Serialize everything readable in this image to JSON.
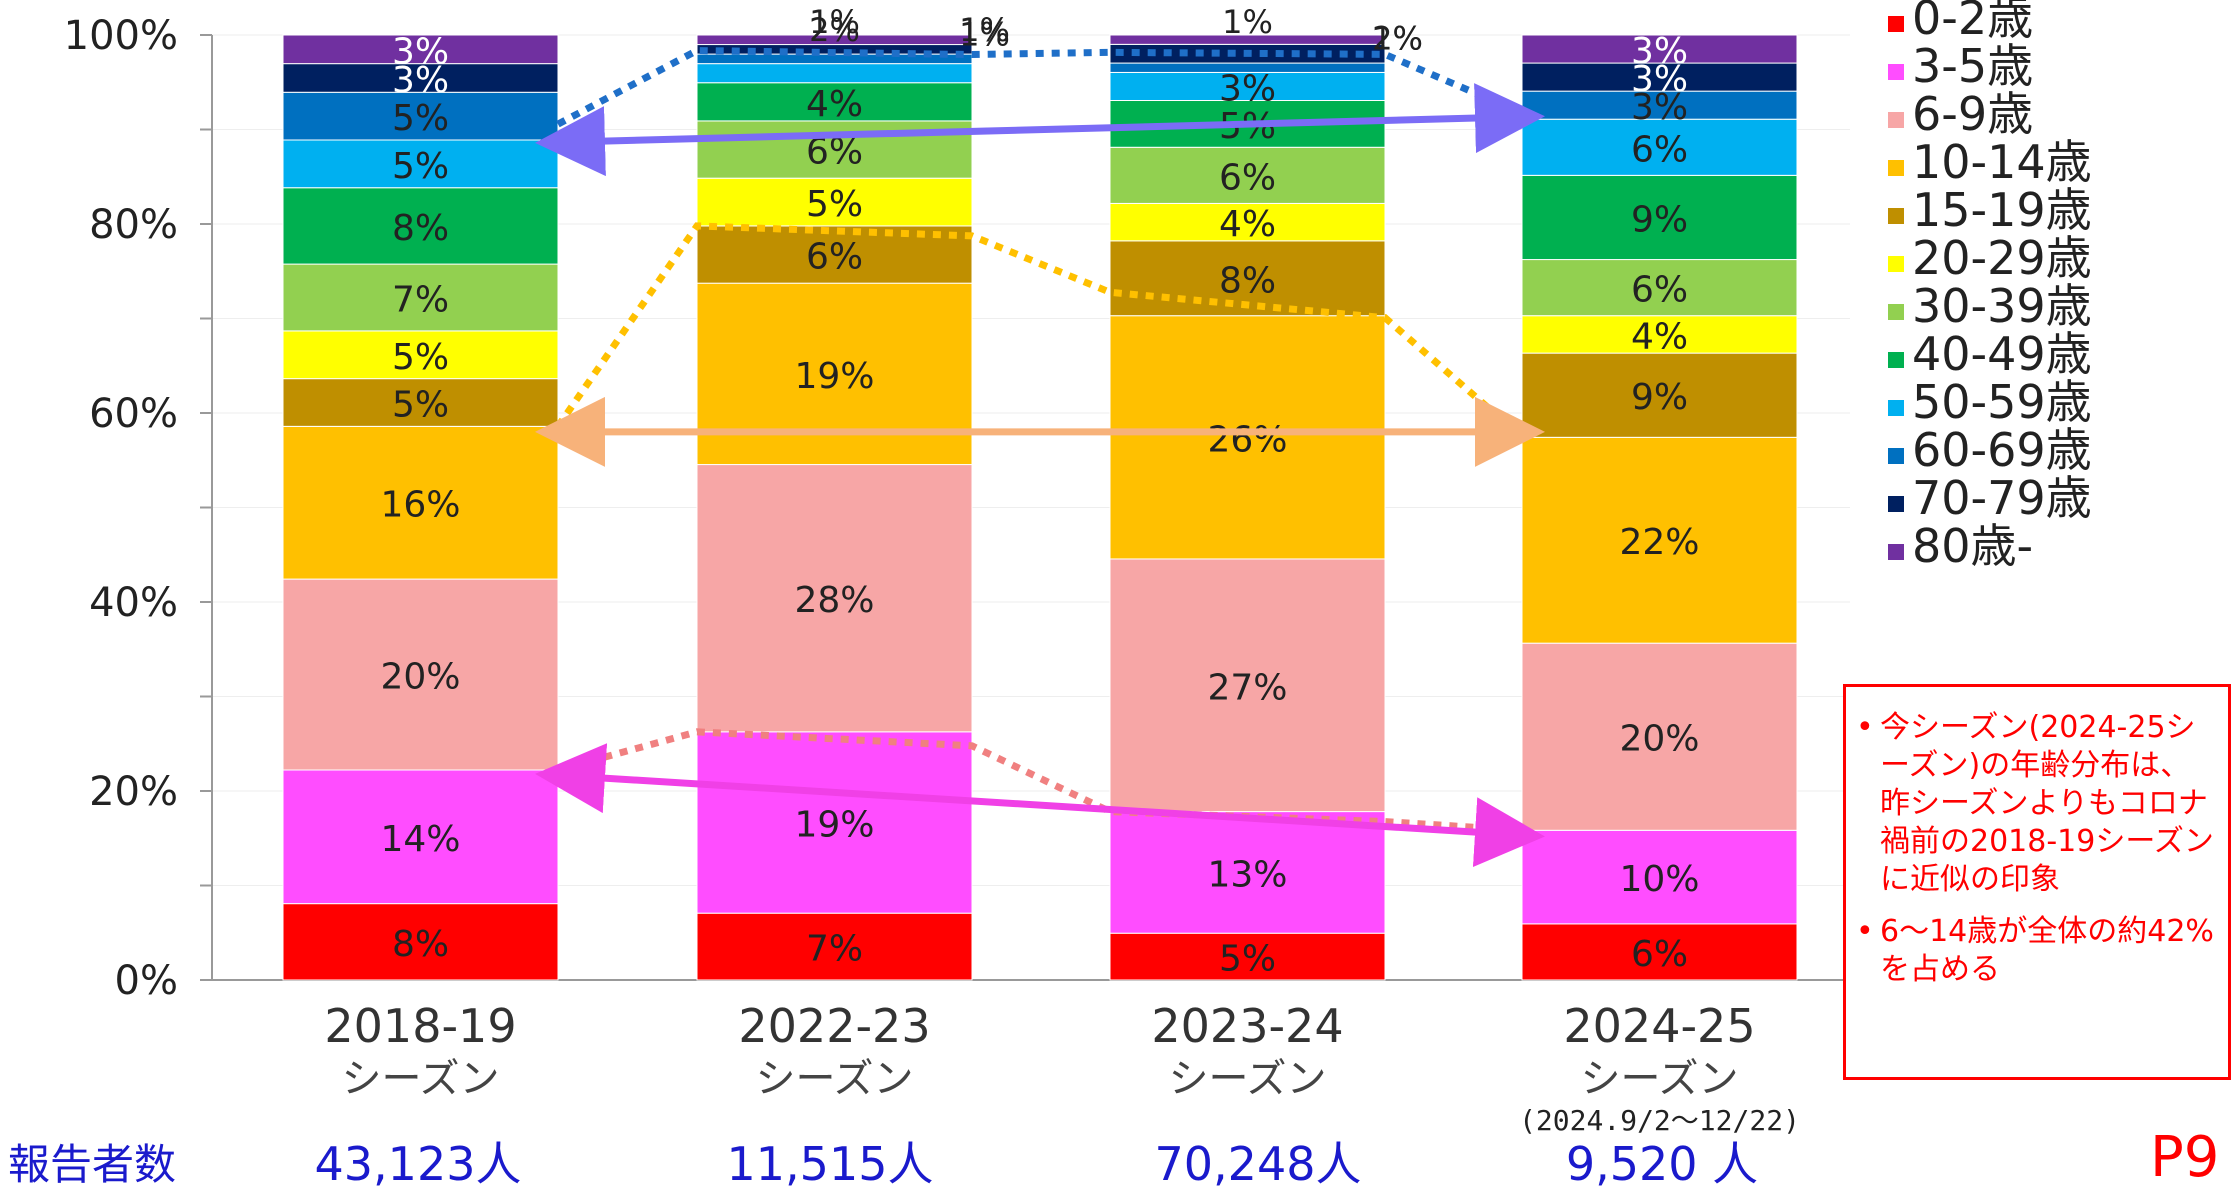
{
  "chart_data": {
    "type": "bar",
    "stacked": true,
    "percent": true,
    "categories": [
      "2018-19",
      "2022-23",
      "2023-24",
      "2024-25"
    ],
    "category_sublabels": [
      "シーズン",
      "シーズン",
      "シーズン",
      "シーズン"
    ],
    "category_notes": [
      "",
      "",
      "",
      "(2024.9/2～12/22)"
    ],
    "yticks": [
      "0%",
      "20%",
      "40%",
      "60%",
      "80%",
      "100%"
    ],
    "ylim": [
      0,
      100
    ],
    "series": [
      {
        "name": "0-2歳",
        "color": "#ff0000",
        "values": [
          8,
          7,
          5,
          6
        ],
        "labels": [
          "8%",
          "7%",
          "5%",
          "6%"
        ]
      },
      {
        "name": "3-5歳",
        "color": "#ff4dff",
        "values": [
          14,
          19,
          13,
          10
        ],
        "labels": [
          "14%",
          "19%",
          "13%",
          "10%"
        ]
      },
      {
        "name": "6-9歳",
        "color": "#f7a6a6",
        "values": [
          20,
          28,
          27,
          20
        ],
        "labels": [
          "20%",
          "28%",
          "27%",
          "20%"
        ]
      },
      {
        "name": "10-14歳",
        "color": "#ffc000",
        "values": [
          16,
          19,
          26,
          22
        ],
        "labels": [
          "16%",
          "19%",
          "26%",
          "22%"
        ]
      },
      {
        "name": "15-19歳",
        "color": "#bf8f00",
        "values": [
          5,
          6,
          8,
          9
        ],
        "labels": [
          "5%",
          "6%",
          "8%",
          "9%"
        ]
      },
      {
        "name": "20-29歳",
        "color": "#ffff00",
        "values": [
          5,
          5,
          4,
          4
        ],
        "labels": [
          "5%",
          "5%",
          "4%",
          "4%"
        ]
      },
      {
        "name": "30-39歳",
        "color": "#92d050",
        "values": [
          7,
          6,
          6,
          6
        ],
        "labels": [
          "7%",
          "6%",
          "6%",
          "6%"
        ]
      },
      {
        "name": "40-49歳",
        "color": "#00b050",
        "values": [
          8,
          4,
          5,
          9
        ],
        "labels": [
          "8%",
          "4%",
          "5%",
          "9%"
        ]
      },
      {
        "name": "50-59歳",
        "color": "#00b0f0",
        "values": [
          5,
          2,
          3,
          6
        ],
        "labels": [
          "5%",
          "2%",
          "3%",
          "6%"
        ]
      },
      {
        "name": "60-69歳",
        "color": "#0070c0",
        "values": [
          5,
          1,
          1,
          3
        ],
        "labels": [
          "5%",
          "1%",
          "1%",
          "3%"
        ]
      },
      {
        "name": "70-79歳",
        "color": "#002060",
        "values": [
          3,
          1,
          2,
          3
        ],
        "labels": [
          "3%",
          "1%",
          "2%",
          "3%"
        ]
      },
      {
        "name": "80歳-",
        "color": "#7030a0",
        "values": [
          3,
          1,
          1,
          3
        ],
        "labels": [
          "3%",
          "1%",
          "1%",
          "3%"
        ]
      }
    ]
  },
  "footer": {
    "label": "報告者数",
    "counts": [
      "43,123人",
      "11,515人",
      "70,248人",
      "9,520 人"
    ]
  },
  "notes": [
    "今シーズン(2024-25シーズン)の年齢分布は、昨シーズンよりもコロナ禍前の2018-19シーズンに近似の印象",
    "6～14歳が全体の約42%を占める"
  ],
  "page_number": "P9"
}
